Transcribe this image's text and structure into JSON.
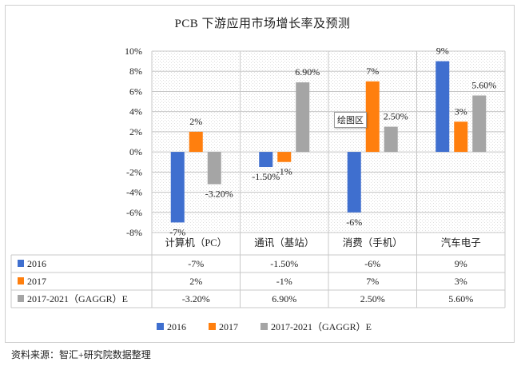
{
  "source_note": "资料来源：智汇+研究院数据整理",
  "tooltip": "绘图区",
  "chart_data": {
    "type": "bar",
    "title": "PCB 下游应用市场增长率及预测",
    "categories": [
      "计算机（PC）",
      "通讯（基站）",
      "消费（手机）",
      "汽车电子"
    ],
    "series": [
      {
        "name": "2016",
        "color": "#3f6fcf",
        "values": [
          -7,
          -1.5,
          -6,
          9
        ],
        "labels": [
          "-7%",
          "-1.50%",
          "-6%",
          "9%"
        ]
      },
      {
        "name": "2017",
        "color": "#ff7f0e",
        "values": [
          2,
          -1,
          7,
          3
        ],
        "labels": [
          "2%",
          "-1%",
          "7%",
          "3%"
        ]
      },
      {
        "name": "2017-2021（GAGGR）E",
        "color": "#a5a5a5",
        "values": [
          -3.2,
          6.9,
          2.5,
          5.6
        ],
        "labels": [
          "-3.20%",
          "6.90%",
          "2.50%",
          "5.60%"
        ]
      }
    ],
    "ylim": [
      -8,
      10
    ],
    "yticks": [
      "-8%",
      "-6%",
      "-4%",
      "-2%",
      "0%",
      "2%",
      "4%",
      "6%",
      "8%",
      "10%"
    ],
    "grid": true,
    "legend_position": "bottom",
    "data_table": true
  }
}
